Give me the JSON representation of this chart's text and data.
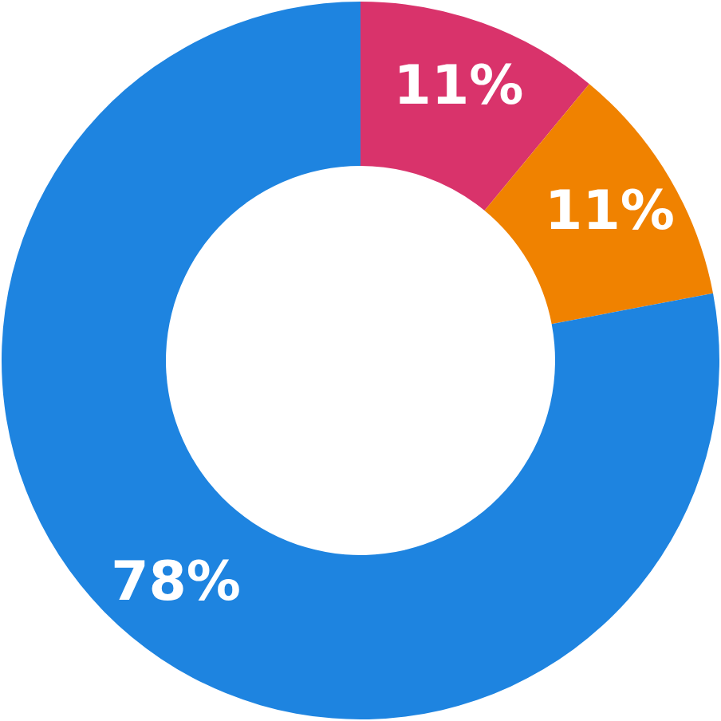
{
  "chart_data": {
    "type": "donut",
    "categories": [
      null,
      null,
      null
    ],
    "values": [
      11,
      11,
      78
    ],
    "colors": [
      "#d9336b",
      "#f08200",
      "#1e84e0"
    ],
    "value_labels": [
      "11%",
      "11%",
      "78%"
    ],
    "legend": false
  }
}
